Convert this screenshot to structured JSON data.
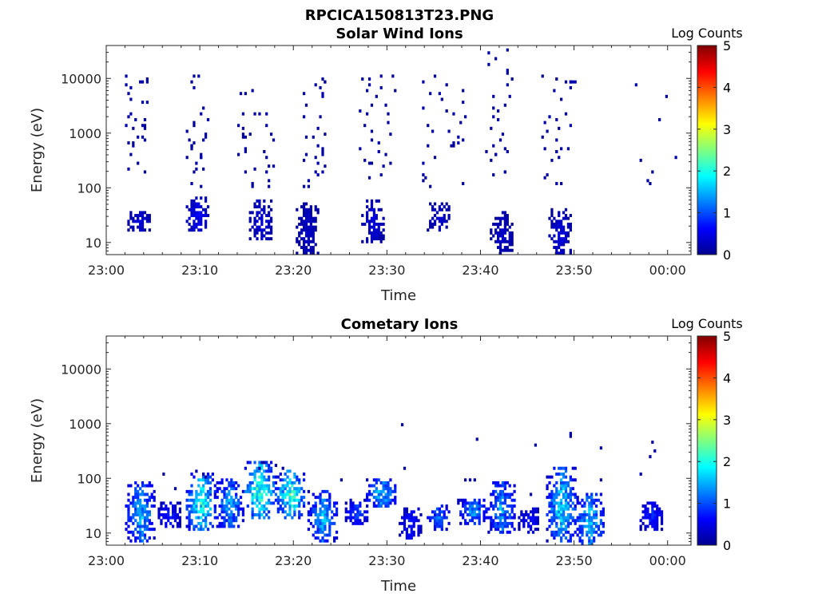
{
  "figure": {
    "suptitle": "RPCICA150813T23.PNG",
    "colorbar_stops": [
      "#00008f",
      "#0000ff",
      "#0080ff",
      "#00ffff",
      "#80ff80",
      "#ffff00",
      "#ff8000",
      "#ff0000",
      "#800000"
    ]
  },
  "chart_data": [
    {
      "type": "heatmap",
      "title": "Solar Wind Ions",
      "xlabel": "Time",
      "ylabel": "Energy (eV)",
      "colorbar_label": "Log Counts",
      "colorbar_range": [
        0,
        5
      ],
      "colorbar_ticks": [
        "0",
        "1",
        "2",
        "3",
        "4",
        "5"
      ],
      "x_ticks": [
        "23:00",
        "23:10",
        "23:20",
        "23:30",
        "23:40",
        "23:50",
        "00:00"
      ],
      "x_tick_minutes": [
        0,
        10,
        20,
        30,
        40,
        50,
        60
      ],
      "xlim_minutes": [
        0,
        62.5
      ],
      "y_scale": "log",
      "ylim": [
        6,
        40000
      ],
      "y_ticks": [
        "10",
        "100",
        "1000",
        "10000"
      ],
      "y_tick_values": [
        10,
        100,
        1000,
        10000
      ],
      "bursts": [
        {
          "t": 4,
          "low": [
            [
              3.5,
              18,
              40,
              0.5
            ]
          ],
          "scatter": [
            [
              2,
              4.5,
              200,
              14000,
              30
            ]
          ]
        },
        {
          "t": 10.5,
          "low": [
            [
              9.8,
              18,
              70,
              0.7
            ]
          ],
          "scatter": [
            [
              8.5,
              11,
              100,
              13000,
              28
            ]
          ]
        },
        {
          "t": 16.5,
          "low": [
            [
              16.5,
              12,
              60,
              0.5
            ]
          ],
          "scatter": [
            [
              14,
              18,
              100,
              9000,
              30
            ]
          ]
        },
        {
          "t": 22.3,
          "low": [
            [
              21.5,
              6,
              60,
              0.35
            ]
          ],
          "scatter": [
            [
              21,
              23.5,
              100,
              11000,
              30
            ]
          ]
        },
        {
          "t": 29,
          "low": [
            [
              28.5,
              10,
              60,
              0.5
            ]
          ],
          "scatter": [
            [
              27,
              31,
              150,
              13000,
              30
            ]
          ]
        },
        {
          "t": 35.5,
          "low": [
            [
              35.5,
              16,
              50,
              0.45
            ]
          ],
          "scatter": [
            [
              33.5,
              38.5,
              100,
              11000,
              30
            ]
          ]
        },
        {
          "t": 42,
          "low": [
            [
              42.3,
              6,
              40,
              0.35
            ]
          ],
          "scatter": [
            [
              40.5,
              43.5,
              150,
              36000,
              28
            ]
          ]
        },
        {
          "t": 48.5,
          "low": [
            [
              48.5,
              6,
              45,
              0.5
            ]
          ],
          "scatter": [
            [
              46.5,
              50.5,
              100,
              12000,
              30
            ]
          ]
        },
        {
          "t": 61,
          "low": [],
          "scatter": [
            [
              56,
              61,
              70,
              12000,
              8
            ]
          ]
        }
      ]
    },
    {
      "type": "heatmap",
      "title": "Cometary Ions",
      "xlabel": "Time",
      "ylabel": "Energy (eV)",
      "colorbar_label": "Log Counts",
      "colorbar_range": [
        0,
        5
      ],
      "colorbar_ticks": [
        "0",
        "1",
        "2",
        "3",
        "4",
        "5"
      ],
      "x_ticks": [
        "23:00",
        "23:10",
        "23:20",
        "23:30",
        "23:40",
        "23:50",
        "00:00"
      ],
      "x_tick_minutes": [
        0,
        10,
        20,
        30,
        40,
        50,
        60
      ],
      "xlim_minutes": [
        0,
        62.5
      ],
      "y_scale": "log",
      "ylim": [
        6,
        40000
      ],
      "y_ticks": [
        "10",
        "100",
        "1000",
        "10000"
      ],
      "y_tick_values": [
        10,
        100,
        1000,
        10000
      ],
      "bursts": [
        {
          "t": 3.8,
          "low": [
            [
              3.7,
              7,
              85,
              1.8
            ]
          ],
          "scatter": []
        },
        {
          "t": 6.8,
          "low": [
            [
              6.8,
              12,
              40,
              0.9
            ]
          ],
          "scatter": [
            [
              6,
              8,
              60,
              120,
              2
            ]
          ]
        },
        {
          "t": 10.5,
          "low": [
            [
              10.3,
              12,
              130,
              2.4
            ]
          ],
          "scatter": [
            [
              9.5,
              11,
              100,
              140,
              3
            ]
          ]
        },
        {
          "t": 13.5,
          "low": [
            [
              13.3,
              13,
              100,
              1.7
            ]
          ],
          "scatter": []
        },
        {
          "t": 16.8,
          "low": [
            [
              16.5,
              20,
              230,
              2.7
            ]
          ],
          "scatter": [
            [
              16,
              17,
              150,
              230,
              3
            ]
          ]
        },
        {
          "t": 19.8,
          "low": [
            [
              19.8,
              20,
              150,
              2.5
            ]
          ],
          "scatter": [
            [
              18,
              19,
              150,
              200,
              2
            ]
          ]
        },
        {
          "t": 23.3,
          "low": [
            [
              23.2,
              7,
              60,
              1.8
            ]
          ],
          "scatter": [
            [
              25,
              26,
              80,
              100,
              1
            ]
          ]
        },
        {
          "t": 27,
          "low": [
            [
              26.8,
              15,
              40,
              1.2
            ]
          ],
          "scatter": []
        },
        {
          "t": 29.5,
          "low": [
            [
              29.5,
              30,
              95,
              1.9
            ]
          ],
          "scatter": [
            [
              31,
              32,
              140,
              1100,
              2
            ]
          ]
        },
        {
          "t": 32.5,
          "low": [
            [
              32.5,
              8,
              30,
              0.9
            ]
          ],
          "scatter": []
        },
        {
          "t": 35.5,
          "low": [
            [
              35.5,
              12,
              35,
              1.4
            ]
          ],
          "scatter": []
        },
        {
          "t": 39.2,
          "low": [
            [
              39.2,
              15,
              45,
              1.6
            ]
          ],
          "scatter": [
            [
              38,
              40,
              60,
              700,
              4
            ]
          ]
        },
        {
          "t": 42.3,
          "low": [
            [
              42.3,
              10,
              90,
              1.7
            ]
          ],
          "scatter": []
        },
        {
          "t": 45.3,
          "low": [
            [
              45.3,
              10,
              30,
              0.8
            ]
          ],
          "scatter": [
            [
              45,
              46,
              50,
              680,
              2
            ]
          ]
        },
        {
          "t": 48.7,
          "low": [
            [
              48.7,
              7,
              150,
              2.1
            ]
          ],
          "scatter": [
            [
              49,
              50,
              100,
              850,
              2
            ]
          ]
        },
        {
          "t": 51.5,
          "low": [
            [
              51.7,
              6,
              55,
              2.0
            ]
          ],
          "scatter": [
            [
              52,
              53,
              80,
              800,
              2
            ]
          ]
        },
        {
          "t": 58.3,
          "low": [
            [
              58.3,
              12,
              40,
              1.0
            ]
          ],
          "scatter": [
            [
              57,
              59,
              80,
              450,
              4
            ]
          ]
        }
      ]
    }
  ]
}
